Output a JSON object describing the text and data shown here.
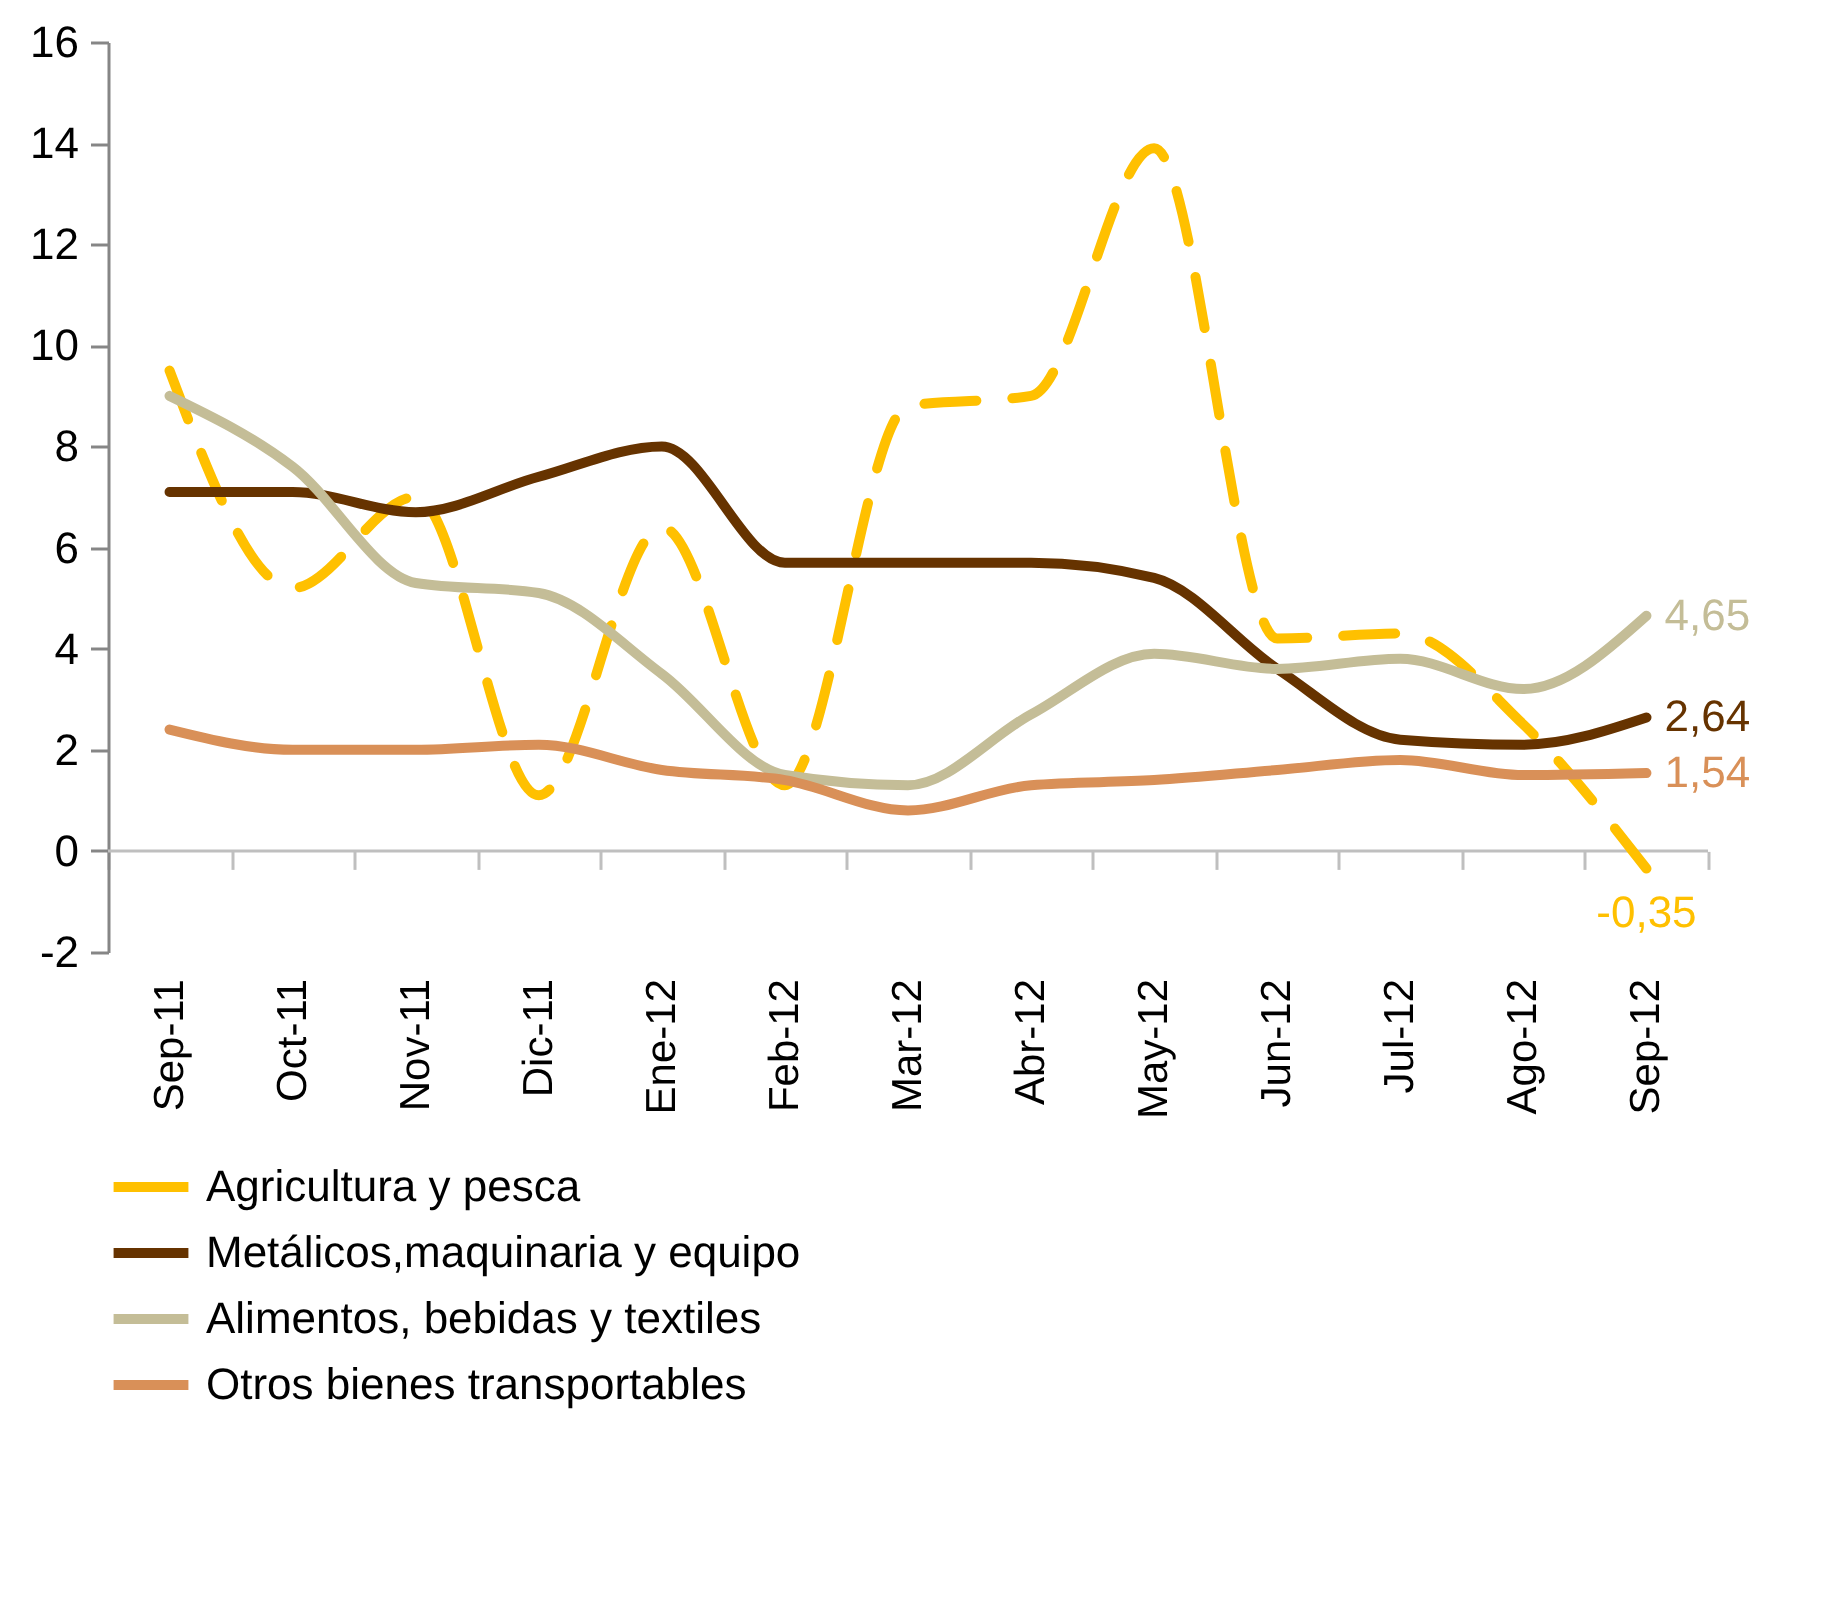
{
  "chart_data": {
    "type": "line",
    "categories": [
      "Sep-11",
      "Oct-11",
      "Nov-11",
      "Dic-11",
      "Ene-12",
      "Feb-12",
      "Mar-12",
      "Abr-12",
      "May-12",
      "Jun-12",
      "Jul-12",
      "Ago-12",
      "Sep-12"
    ],
    "ylim": [
      -2,
      16
    ],
    "yticks": [
      -2,
      0,
      2,
      4,
      6,
      8,
      10,
      12,
      14,
      16
    ],
    "grid": false,
    "legend": "bottom",
    "ref_lines": [
      {
        "axis": "y",
        "value": 0,
        "color": "#bfbfbf"
      }
    ],
    "series": [
      {
        "name": "Agricultura y pesca",
        "color": "#ffc000",
        "line_style": "dashed",
        "values": [
          9.5,
          5.2,
          7.0,
          1.1,
          6.4,
          1.3,
          8.8,
          9.0,
          13.9,
          4.2,
          4.3,
          2.5,
          -0.35
        ],
        "value_labels": [
          null,
          null,
          null,
          null,
          null,
          null,
          null,
          null,
          null,
          null,
          null,
          null,
          "-0,35"
        ]
      },
      {
        "name": "Metálicos,maquinaria y equipo",
        "color": "#663300",
        "line_style": "solid",
        "values": [
          7.1,
          7.1,
          6.7,
          7.4,
          8.0,
          5.7,
          5.7,
          5.7,
          5.4,
          3.6,
          2.2,
          2.1,
          2.64
        ],
        "value_labels": [
          null,
          null,
          null,
          null,
          null,
          null,
          null,
          null,
          null,
          null,
          null,
          null,
          "2,64"
        ]
      },
      {
        "name": "Alimentos, bebidas y textiles",
        "color": "#c4bd97",
        "line_style": "solid",
        "values": [
          9.0,
          7.6,
          5.3,
          5.1,
          3.5,
          1.5,
          1.3,
          2.7,
          3.9,
          3.6,
          3.8,
          3.2,
          4.65
        ],
        "value_labels": [
          null,
          null,
          null,
          null,
          null,
          null,
          null,
          null,
          null,
          null,
          null,
          null,
          "4,65"
        ]
      },
      {
        "name": "Otros bienes transportables",
        "color": "#d99058",
        "line_style": "solid",
        "values": [
          2.4,
          2.0,
          2.0,
          2.1,
          1.6,
          1.4,
          0.8,
          1.3,
          1.4,
          1.6,
          1.8,
          1.5,
          1.54
        ],
        "value_labels": [
          null,
          null,
          null,
          null,
          null,
          null,
          null,
          null,
          null,
          null,
          null,
          null,
          "1,54"
        ]
      }
    ]
  }
}
